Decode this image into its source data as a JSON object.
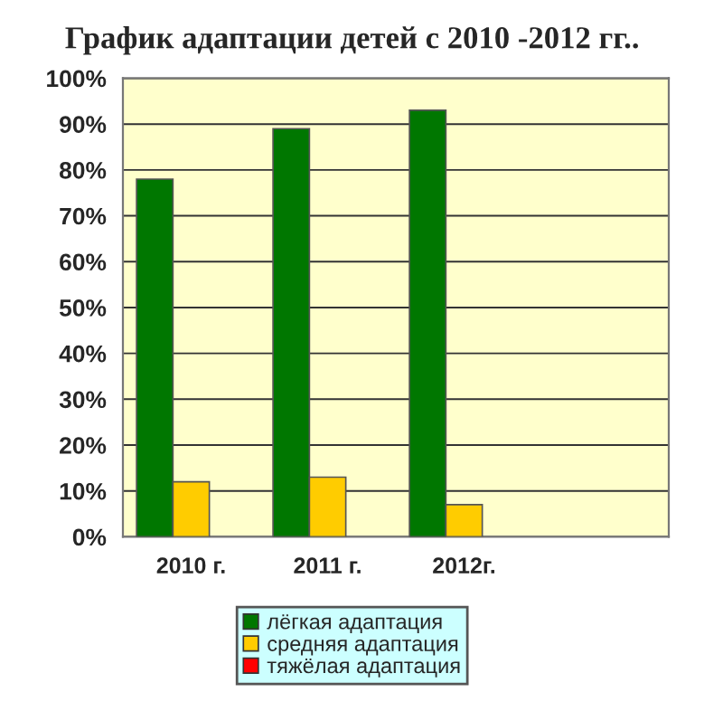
{
  "chart_data": {
    "type": "bar",
    "title": "График адаптации детей с 2010 -2012 гг..",
    "categories": [
      "2010 г.",
      "2011 г.",
      "2012г.",
      null
    ],
    "series": [
      {
        "name": "лёгкая адаптация",
        "color": "#007700",
        "values": [
          78,
          89,
          93,
          null
        ]
      },
      {
        "name": "средняя адаптация",
        "color": "#ffcc00",
        "values": [
          12,
          13,
          7,
          null
        ]
      },
      {
        "name": "тяжёлая адаптация",
        "color": "#ff0000",
        "values": [
          null,
          null,
          null,
          null
        ]
      }
    ],
    "ylim": [
      0,
      100
    ],
    "yticks": [
      {
        "value": 0,
        "label": "0%"
      },
      {
        "value": 10,
        "label": "10%"
      },
      {
        "value": 20,
        "label": "20%"
      },
      {
        "value": 30,
        "label": "30%"
      },
      {
        "value": 40,
        "label": "40%"
      },
      {
        "value": 50,
        "label": "50%"
      },
      {
        "value": 60,
        "label": "60%"
      },
      {
        "value": 70,
        "label": "70%"
      },
      {
        "value": 80,
        "label": "80%"
      },
      {
        "value": 90,
        "label": "90%"
      },
      {
        "value": 100,
        "label": "100%"
      }
    ],
    "grid": "y",
    "legend": "bottom"
  }
}
